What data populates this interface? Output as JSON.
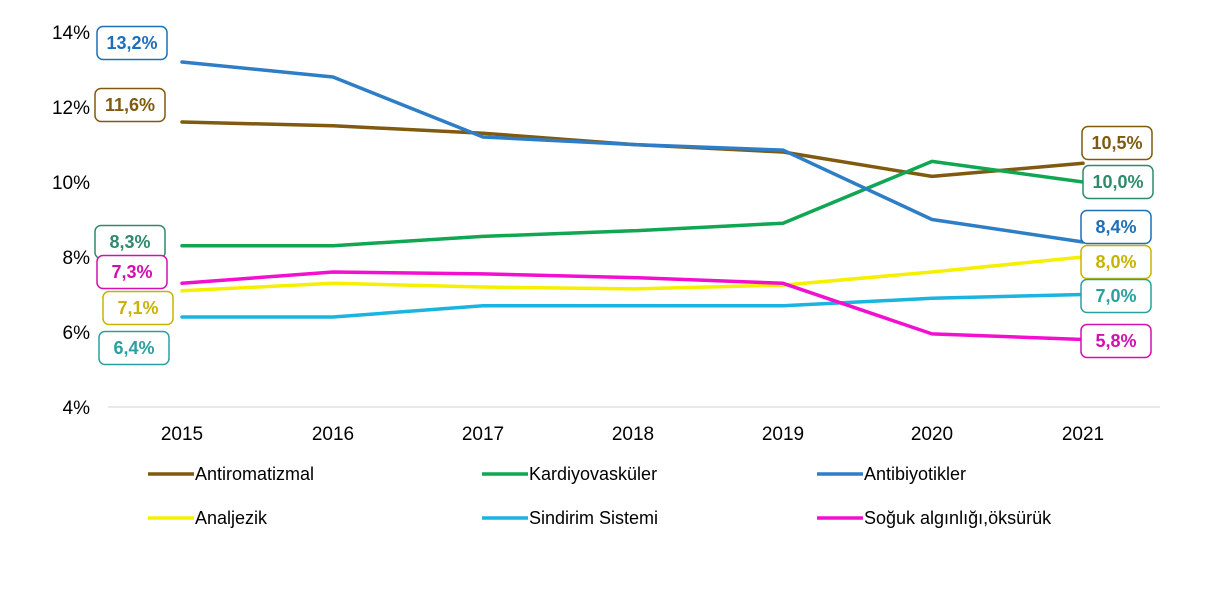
{
  "chart_data": {
    "type": "line",
    "x": [
      "2015",
      "2016",
      "2017",
      "2018",
      "2019",
      "2020",
      "2021"
    ],
    "yticks": [
      "4%",
      "6%",
      "8%",
      "10%",
      "12%",
      "14%"
    ],
    "ylim": [
      4,
      14
    ],
    "grid": false,
    "legend_position": "bottom",
    "series": [
      {
        "name": "Antiromatizmal",
        "color": "#7F5A0F",
        "values": [
          11.6,
          11.5,
          11.3,
          11.0,
          10.8,
          10.15,
          10.5
        ],
        "first_label": "11,6%",
        "last_label": "10,5%"
      },
      {
        "name": "Kardiyovasküler",
        "color": "#10A652",
        "values": [
          8.3,
          8.3,
          8.55,
          8.7,
          8.9,
          10.55,
          10.0
        ],
        "first_label": "8,3%",
        "last_label": "10,0%"
      },
      {
        "name": "Antibiyotikler",
        "color": "#2E7DC7",
        "values": [
          13.2,
          12.8,
          11.2,
          11.0,
          10.85,
          9.0,
          8.4
        ],
        "first_label": "13,2%",
        "last_label": "8,4%"
      },
      {
        "name": "Analjezik",
        "color": "#F5F000",
        "values": [
          7.1,
          7.3,
          7.2,
          7.15,
          7.25,
          7.6,
          8.0
        ],
        "first_label": "7,1%",
        "last_label": "8,0%"
      },
      {
        "name": "Sindirim Sistemi",
        "color": "#1AB4E0",
        "values": [
          6.4,
          6.4,
          6.7,
          6.7,
          6.7,
          6.9,
          7.0
        ],
        "first_label": "6,4%",
        "last_label": "7,0%"
      },
      {
        "name": "Soğuk algınlığı,öksürük",
        "color": "#F20FD0",
        "values": [
          7.3,
          7.6,
          7.55,
          7.45,
          7.3,
          5.95,
          5.8
        ],
        "first_label": "7,3%",
        "last_label": "5,8%"
      }
    ]
  },
  "label_colors": {
    "Antiromatizmal": {
      "text": "#7F5A0F",
      "border": "#7F5A0F"
    },
    "Kardiyovasküler": {
      "text": "#2E8B6A",
      "border": "#2E8B6A"
    },
    "Antibiyotikler": {
      "text": "#1F6FB8",
      "border": "#1F6FB8"
    },
    "Analjezik": {
      "text": "#C8B400",
      "border": "#C8B400"
    },
    "Sindirim Sistemi": {
      "text": "#2AA0A0",
      "border": "#2AA0A0"
    },
    "Soğuk algınlığı,öksürük": {
      "text": "#D010B0",
      "border": "#D010B0"
    }
  }
}
